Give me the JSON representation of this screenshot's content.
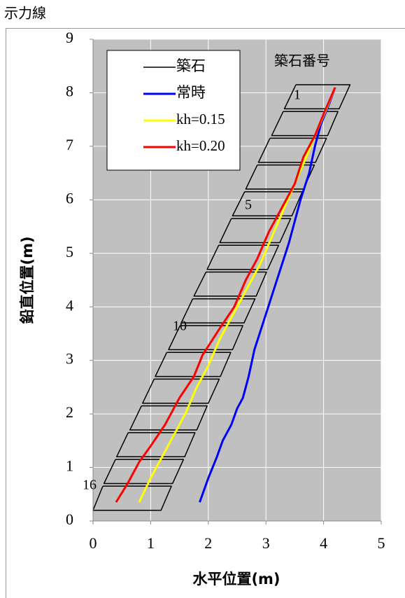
{
  "chart_data": {
    "type": "line",
    "title": "示力線",
    "xlabel": "水平位置(m)",
    "ylabel": "鉛直位置(m)",
    "xlim": [
      0,
      5
    ],
    "ylim": [
      0,
      9
    ],
    "xticks": [
      0,
      1,
      2,
      3,
      4,
      5
    ],
    "yticks": [
      0,
      1,
      2,
      3,
      4,
      5,
      6,
      7,
      8,
      9
    ],
    "grid": true,
    "legend": "upper left",
    "annotations": [
      "築石番号",
      "1",
      "5",
      "10",
      "16"
    ],
    "series": [
      {
        "name": "築石",
        "color": "#000000",
        "x": [
          3.52,
          4.46,
          4.27,
          3.32,
          3.52,
          null,
          3.3,
          4.25,
          4.07,
          3.1,
          3.3,
          null,
          3.07,
          4.05,
          3.86,
          2.87,
          3.07,
          null,
          2.85,
          3.84,
          3.65,
          2.65,
          2.85,
          null,
          2.63,
          3.63,
          3.45,
          2.42,
          2.63,
          null,
          2.4,
          3.43,
          3.24,
          2.2,
          2.4,
          null,
          2.18,
          3.22,
          3.03,
          1.98,
          2.18,
          null,
          1.96,
          3.01,
          2.83,
          1.75,
          1.96,
          null,
          1.73,
          2.81,
          2.62,
          1.53,
          1.73,
          null,
          1.51,
          2.6,
          2.42,
          1.31,
          1.51,
          null,
          1.28,
          2.39,
          2.21,
          1.08,
          1.28,
          null,
          1.06,
          2.19,
          2.0,
          0.86,
          1.06,
          null,
          0.84,
          1.98,
          1.8,
          0.64,
          0.84,
          null,
          0.61,
          1.77,
          1.59,
          0.41,
          0.61,
          null,
          0.39,
          1.57,
          1.38,
          0.19,
          0.39,
          null,
          0.17,
          1.36,
          1.18,
          0.0,
          0.17
        ],
        "values": [
          8.15,
          8.15,
          7.7,
          7.7,
          8.15,
          null,
          7.65,
          7.65,
          7.2,
          7.2,
          7.65,
          null,
          7.15,
          7.15,
          6.7,
          6.7,
          7.15,
          null,
          6.65,
          6.65,
          6.2,
          6.2,
          6.65,
          null,
          6.15,
          6.15,
          5.7,
          5.7,
          6.15,
          null,
          5.65,
          5.65,
          5.2,
          5.2,
          5.65,
          null,
          5.15,
          5.15,
          4.7,
          4.7,
          5.15,
          null,
          4.65,
          4.65,
          4.2,
          4.2,
          4.65,
          null,
          4.15,
          4.15,
          3.7,
          3.7,
          4.15,
          null,
          3.65,
          3.65,
          3.2,
          3.2,
          3.65,
          null,
          3.15,
          3.15,
          2.7,
          2.7,
          3.15,
          null,
          2.65,
          2.65,
          2.2,
          2.2,
          2.65,
          null,
          2.15,
          2.15,
          1.7,
          1.7,
          2.15,
          null,
          1.65,
          1.65,
          1.2,
          1.2,
          1.65,
          null,
          1.15,
          1.15,
          0.7,
          0.7,
          1.15,
          null,
          0.65,
          0.65,
          0.2,
          0.2,
          0.65
        ]
      },
      {
        "name": "常時",
        "color": "#0000ff",
        "x": [
          1.85,
          2.0,
          2.15,
          2.25,
          2.4,
          2.5,
          2.6,
          2.7,
          2.8,
          2.95,
          3.1,
          3.25,
          3.4,
          3.5,
          3.6,
          3.75,
          3.85,
          3.95,
          4.1,
          4.2
        ],
        "values": [
          0.35,
          0.8,
          1.2,
          1.5,
          1.8,
          2.1,
          2.3,
          2.7,
          3.2,
          3.7,
          4.2,
          4.7,
          5.2,
          5.6,
          6.0,
          6.5,
          7.0,
          7.4,
          7.8,
          8.1
        ]
      },
      {
        "name": "kh=0.15",
        "color": "#ffff00",
        "x": [
          0.8,
          1.0,
          1.2,
          1.4,
          1.6,
          1.8,
          2.0,
          2.2,
          2.45,
          2.7,
          2.9,
          3.1,
          3.3,
          3.5,
          3.7,
          3.85,
          4.05,
          4.2
        ],
        "values": [
          0.35,
          0.8,
          1.2,
          1.6,
          2.0,
          2.5,
          2.9,
          3.4,
          3.9,
          4.4,
          4.8,
          5.3,
          5.8,
          6.3,
          6.8,
          7.2,
          7.7,
          8.1
        ]
      },
      {
        "name": "kh=0.20",
        "color": "#ff0000",
        "x": [
          0.4,
          0.6,
          0.8,
          1.0,
          1.25,
          1.5,
          1.75,
          1.9,
          2.2,
          2.45,
          2.65,
          2.85,
          3.05,
          3.3,
          3.5,
          3.65,
          3.85,
          4.0,
          4.2
        ],
        "values": [
          0.35,
          0.7,
          1.1,
          1.4,
          1.8,
          2.3,
          2.7,
          3.1,
          3.6,
          4.0,
          4.5,
          4.9,
          5.4,
          5.9,
          6.3,
          6.8,
          7.2,
          7.6,
          8.1
        ]
      }
    ]
  }
}
